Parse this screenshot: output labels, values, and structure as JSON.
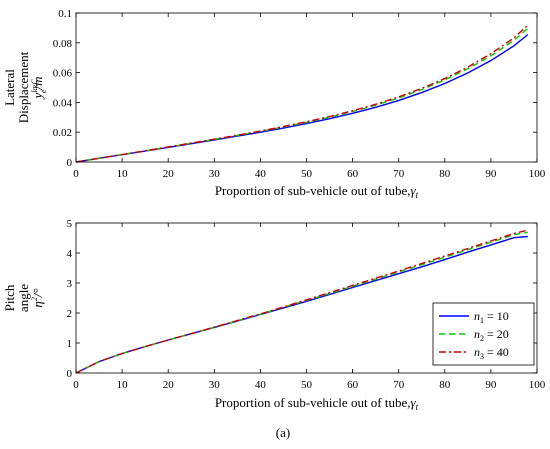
{
  "chart_data": [
    {
      "type": "line",
      "xlabel_parts": [
        "Proportion of sub-vehicle out of tube,",
        "γ",
        "t"
      ],
      "ylabel_lines": [
        "Lateral",
        "Displacement"
      ],
      "ylabel_math": [
        "y",
        "la,C",
        "e",
        "/m"
      ],
      "xlim": [
        0,
        100
      ],
      "ylim": [
        0,
        0.1
      ],
      "xticks": [
        0,
        10,
        20,
        30,
        40,
        50,
        60,
        70,
        80,
        90,
        100
      ],
      "yticks": [
        0,
        0.02,
        0.04,
        0.06,
        0.08,
        0.1
      ],
      "ytick_labels": [
        "0",
        "0.02",
        "0.04",
        "0.06",
        "0.08",
        "0.1"
      ],
      "grid": false,
      "x": [
        0,
        5,
        10,
        15,
        20,
        25,
        30,
        35,
        40,
        45,
        50,
        55,
        60,
        65,
        70,
        75,
        80,
        85,
        90,
        95,
        98
      ],
      "series": [
        {
          "name": "n1 = 10",
          "color": "#0000ff",
          "dash": "solid",
          "values": [
            0,
            0.0025,
            0.0049,
            0.0073,
            0.0098,
            0.0123,
            0.0148,
            0.0174,
            0.02,
            0.0228,
            0.0258,
            0.0291,
            0.0327,
            0.0367,
            0.0413,
            0.0466,
            0.0527,
            0.0598,
            0.0681,
            0.078,
            0.0855
          ]
        },
        {
          "name": "n2 = 20",
          "color": "#00cc00",
          "dash": "dash",
          "values": [
            0,
            0.0025,
            0.005,
            0.0075,
            0.01,
            0.0126,
            0.0152,
            0.0178,
            0.0206,
            0.0235,
            0.0266,
            0.0301,
            0.0339,
            0.0381,
            0.043,
            0.0486,
            0.0551,
            0.0626,
            0.0713,
            0.0817,
            0.0897
          ]
        },
        {
          "name": "n3 = 40",
          "color": "#cc0000",
          "dash": "dashdot",
          "values": [
            0,
            0.0025,
            0.005,
            0.0075,
            0.0101,
            0.0127,
            0.0153,
            0.018,
            0.0208,
            0.0238,
            0.027,
            0.0305,
            0.0344,
            0.0387,
            0.0437,
            0.0494,
            0.056,
            0.0637,
            0.0727,
            0.0833,
            0.0918
          ]
        }
      ]
    },
    {
      "type": "line",
      "xlabel_parts": [
        "Proportion of sub-vehicle out of tube,",
        "γ",
        "t"
      ],
      "ylabel_lines": [
        "Pitch",
        "angle"
      ],
      "ylabel_math": [
        "η",
        "2",
        "",
        "/°"
      ],
      "xlim": [
        0,
        100
      ],
      "ylim": [
        0,
        5
      ],
      "xticks": [
        0,
        10,
        20,
        30,
        40,
        50,
        60,
        70,
        80,
        90,
        100
      ],
      "yticks": [
        0,
        1,
        2,
        3,
        4,
        5
      ],
      "ytick_labels": [
        "0",
        "1",
        "2",
        "3",
        "4",
        "5"
      ],
      "grid": false,
      "legend": {
        "position": "bottom-right",
        "entries": [
          {
            "var": "n",
            "sub": "1",
            "rhs": " = 10"
          },
          {
            "var": "n",
            "sub": "2",
            "rhs": " = 20"
          },
          {
            "var": "n",
            "sub": "3",
            "rhs": " = 40"
          }
        ]
      },
      "x": [
        0,
        5,
        10,
        15,
        20,
        25,
        30,
        35,
        40,
        45,
        50,
        55,
        60,
        65,
        70,
        75,
        80,
        85,
        90,
        95,
        98
      ],
      "series": [
        {
          "name": "n1 = 10",
          "color": "#0000ff",
          "dash": "solid",
          "values": [
            0,
            0.38,
            0.65,
            0.88,
            1.1,
            1.31,
            1.52,
            1.73,
            1.95,
            2.17,
            2.39,
            2.62,
            2.85,
            3.08,
            3.31,
            3.54,
            3.78,
            4.03,
            4.27,
            4.51,
            4.55
          ]
        },
        {
          "name": "n2 = 20",
          "color": "#00cc00",
          "dash": "dash",
          "values": [
            0,
            0.38,
            0.65,
            0.88,
            1.1,
            1.31,
            1.52,
            1.74,
            1.96,
            2.19,
            2.42,
            2.65,
            2.89,
            3.13,
            3.37,
            3.61,
            3.86,
            4.11,
            4.36,
            4.61,
            4.69
          ]
        },
        {
          "name": "n3 = 40",
          "color": "#cc0000",
          "dash": "dashdot",
          "values": [
            0,
            0.38,
            0.65,
            0.88,
            1.1,
            1.31,
            1.53,
            1.75,
            1.97,
            2.2,
            2.44,
            2.68,
            2.92,
            3.16,
            3.4,
            3.65,
            3.9,
            4.15,
            4.4,
            4.65,
            4.76
          ]
        }
      ]
    }
  ],
  "caption": "(a)"
}
